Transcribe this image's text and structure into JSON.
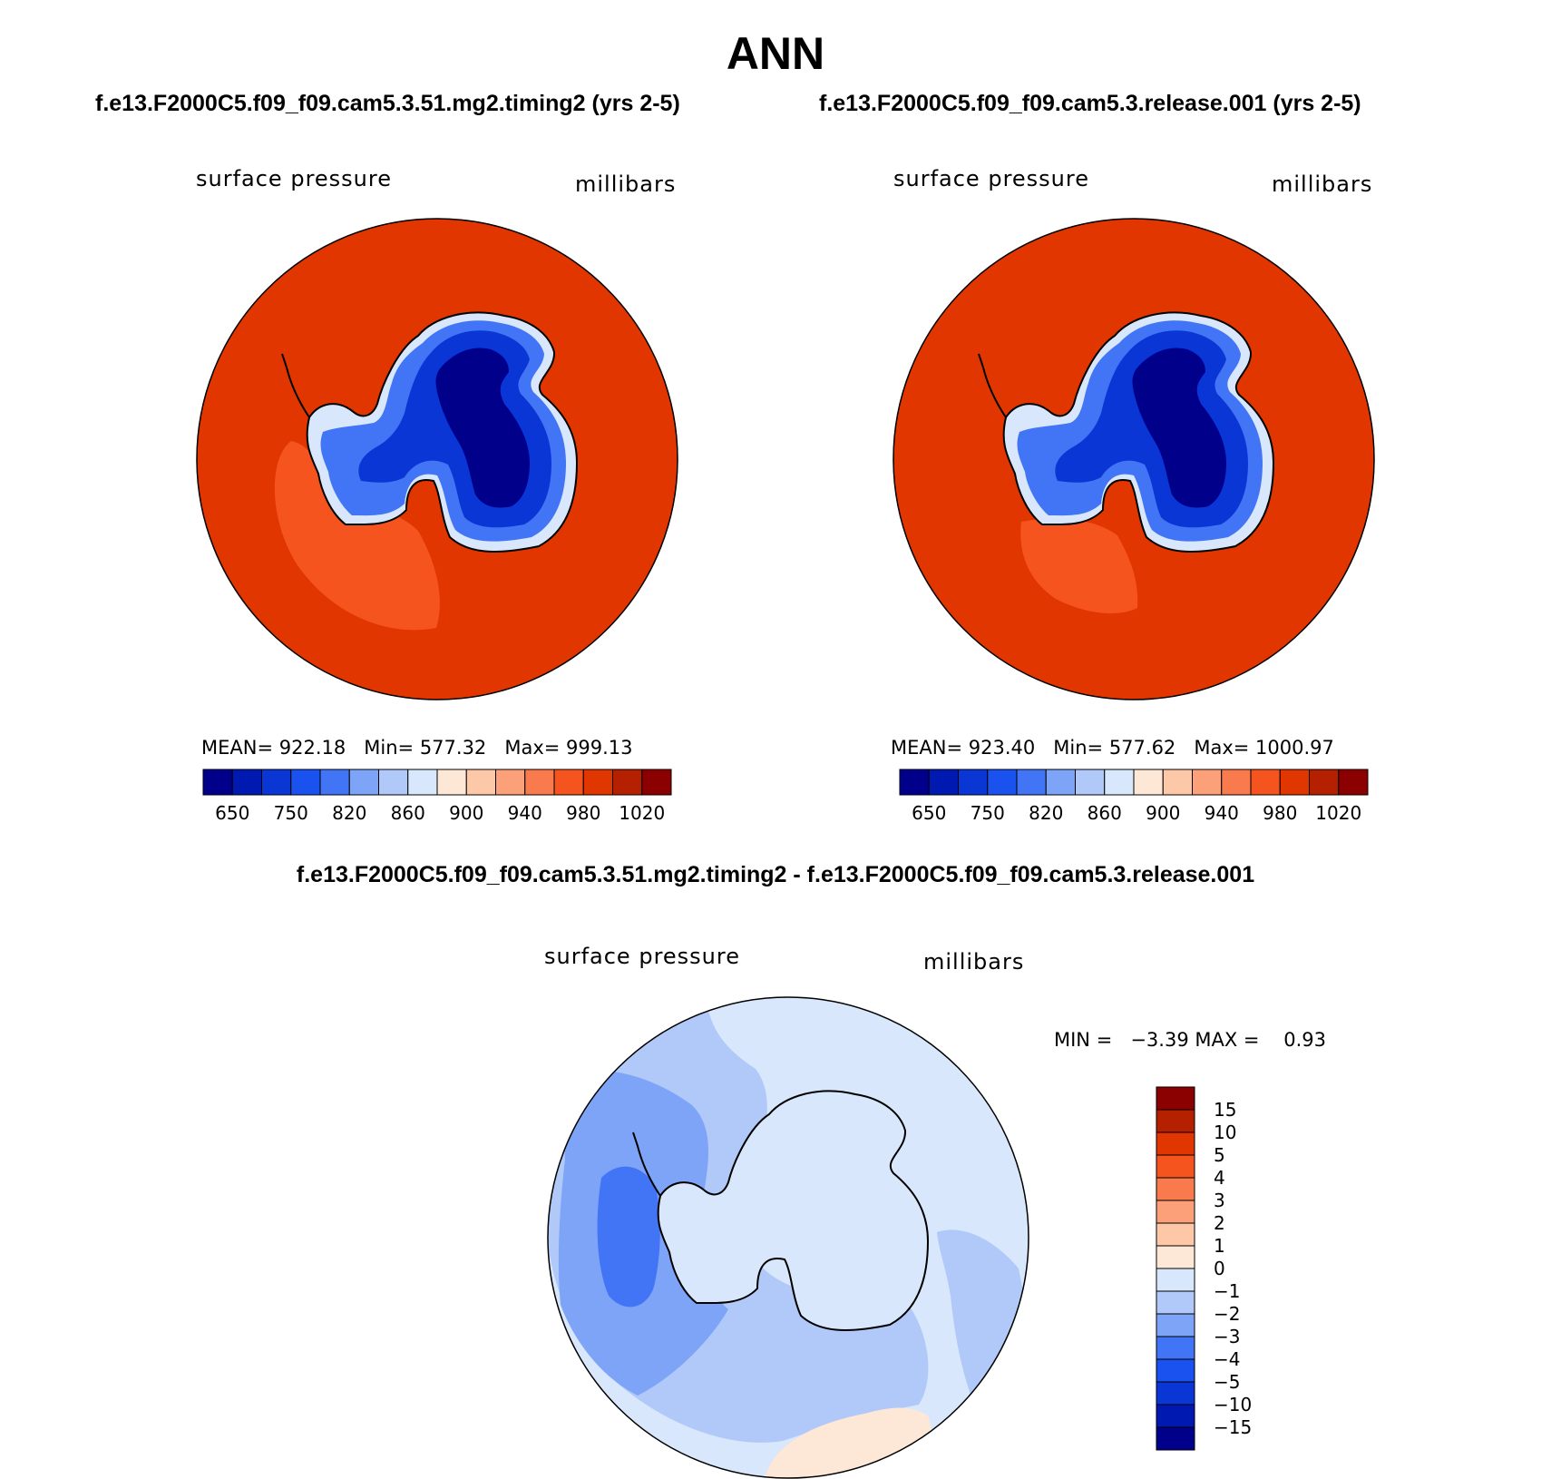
{
  "title": "ANN",
  "panels": [
    {
      "case_title": "f.e13.F2000C5.f09_f09.cam5.3.51.mg2.timing2 (yrs 2-5)",
      "variable": "surface pressure",
      "units": "millibars",
      "stats": {
        "mean_label": "MEAN=",
        "mean": "922.18",
        "min_label": "Min=",
        "min": "577.32",
        "max_label": "Max=",
        "max": "999.13"
      }
    },
    {
      "case_title": "f.e13.F2000C5.f09_f09.cam5.3.release.001 (yrs 2-5)",
      "variable": "surface pressure",
      "units": "millibars",
      "stats": {
        "mean_label": "MEAN=",
        "mean": "923.40",
        "min_label": "Min=",
        "min": "577.62",
        "max_label": "Max=",
        "max": "1000.97"
      }
    }
  ],
  "colorbar": {
    "colors": [
      "#00008b",
      "#0019b0",
      "#0a36d6",
      "#1a52f0",
      "#4275f5",
      "#7ea4f7",
      "#b0c9f9",
      "#d8e7fb",
      "#fde7d6",
      "#fcc8a8",
      "#fca07a",
      "#f97a4c",
      "#f5541e",
      "#e13600",
      "#b52000",
      "#8b0000"
    ],
    "tick_labels": [
      "650",
      "750",
      "820",
      "860",
      "900",
      "940",
      "980",
      "1020"
    ]
  },
  "diff": {
    "title": "f.e13.F2000C5.f09_f09.cam5.3.51.mg2.timing2 - f.e13.F2000C5.f09_f09.cam5.3.release.001",
    "variable": "surface pressure",
    "units": "millibars",
    "min_label": "MIN =",
    "min": "−3.39",
    "max_label": "MAX =",
    "max": "0.93",
    "colorbar_colors": [
      "#8b0000",
      "#b52000",
      "#e13600",
      "#f5541e",
      "#f97a4c",
      "#fca07a",
      "#fcc8a8",
      "#fde7d6",
      "#d8e7fb",
      "#b0c9f9",
      "#7ea4f7",
      "#4275f5",
      "#1a52f0",
      "#0a36d6",
      "#0019b0",
      "#00008b"
    ],
    "colorbar_labels": [
      "15",
      "10",
      "5",
      "4",
      "3",
      "2",
      "1",
      "0",
      "−1",
      "−2",
      "−3",
      "−4",
      "−5",
      "−10",
      "−15"
    ]
  }
}
